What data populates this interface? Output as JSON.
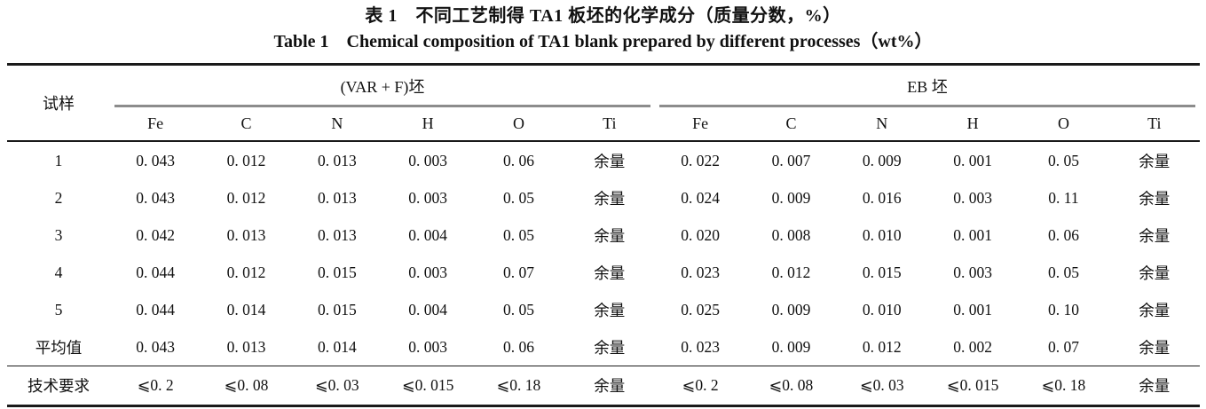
{
  "page": {
    "title_zh": "表 1　不同工艺制得 TA1 板坯的化学成分（质量分数，%）",
    "title_en": "Table 1　Chemical composition of TA1 blank prepared by different processes（wt%）"
  },
  "table": {
    "sample_header": "试样",
    "groups": [
      {
        "label": "(VAR + F)坯"
      },
      {
        "label": "EB 坯"
      }
    ],
    "element_headers": [
      "Fe",
      "C",
      "N",
      "H",
      "O",
      "Ti",
      "Fe",
      "C",
      "N",
      "H",
      "O",
      "Ti"
    ],
    "balance_label": "余量",
    "rows": [
      {
        "label": "1",
        "cells": [
          "0. 043",
          "0. 012",
          "0. 013",
          "0. 003",
          "0. 06",
          "余量",
          "0. 022",
          "0. 007",
          "0. 009",
          "0. 001",
          "0. 05",
          "余量"
        ]
      },
      {
        "label": "2",
        "cells": [
          "0. 043",
          "0. 012",
          "0. 013",
          "0. 003",
          "0. 05",
          "余量",
          "0. 024",
          "0. 009",
          "0. 016",
          "0. 003",
          "0. 11",
          "余量"
        ]
      },
      {
        "label": "3",
        "cells": [
          "0. 042",
          "0. 013",
          "0. 013",
          "0. 004",
          "0. 05",
          "余量",
          "0. 020",
          "0. 008",
          "0. 010",
          "0. 001",
          "0. 06",
          "余量"
        ]
      },
      {
        "label": "4",
        "cells": [
          "0. 044",
          "0. 012",
          "0. 015",
          "0. 003",
          "0. 07",
          "余量",
          "0. 023",
          "0. 012",
          "0. 015",
          "0. 003",
          "0. 05",
          "余量"
        ]
      },
      {
        "label": "5",
        "cells": [
          "0. 044",
          "0. 014",
          "0. 015",
          "0. 004",
          "0. 05",
          "余量",
          "0. 025",
          "0. 009",
          "0. 010",
          "0. 001",
          "0. 10",
          "余量"
        ]
      },
      {
        "label": "平均值",
        "cells": [
          "0. 043",
          "0. 013",
          "0. 014",
          "0. 003",
          "0. 06",
          "余量",
          "0. 023",
          "0. 009",
          "0. 012",
          "0. 002",
          "0. 07",
          "余量"
        ]
      },
      {
        "label": "技术要求",
        "cells": [
          "⩽0. 2",
          "⩽0. 08",
          "⩽0. 03",
          "⩽0. 015",
          "⩽0. 18",
          "余量",
          "⩽0. 2",
          "⩽0. 08",
          "⩽0. 03",
          "⩽0. 015",
          "⩽0. 18",
          "余量"
        ]
      }
    ]
  }
}
